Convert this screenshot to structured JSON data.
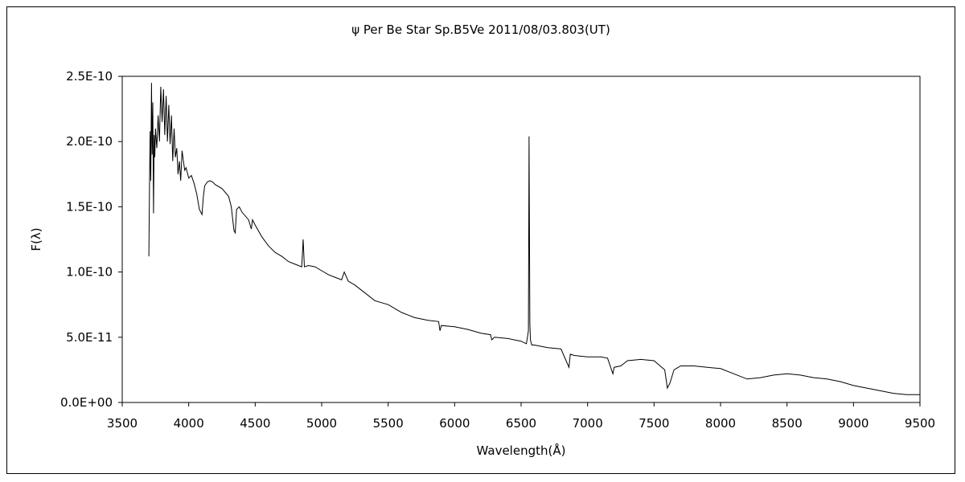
{
  "chart_data": {
    "type": "line",
    "title": "ψ Per   Be Star   Sp.B5Ve    2011/08/03.803(UT)",
    "xlabel": "Wavelength(Å)",
    "ylabel": "F(λ)",
    "xlim": [
      3500,
      9500
    ],
    "ylim": [
      0,
      2.5e-10
    ],
    "x_ticks": [
      3500,
      4000,
      4500,
      5000,
      5500,
      6000,
      6500,
      7000,
      7500,
      8000,
      8500,
      9000,
      9500
    ],
    "x_tick_labels": [
      "3500",
      "4000",
      "4500",
      "5000",
      "5500",
      "6000",
      "6500",
      "7000",
      "7500",
      "8000",
      "8500",
      "9000",
      "9500"
    ],
    "y_ticks": [
      0,
      5e-11,
      1e-10,
      1.5e-10,
      2e-10,
      2.5e-10
    ],
    "y_tick_labels": [
      "0.0E+00",
      "5.0E-11",
      "1.0E-10",
      "1.5E-10",
      "2.0E-10",
      "2.5E-10"
    ],
    "grid": false,
    "legend": "none",
    "line_color": "#000000",
    "series": [
      {
        "x": [
          3700,
          3705,
          3710,
          3715,
          3720,
          3725,
          3730,
          3735,
          3740,
          3745,
          3750,
          3760,
          3770,
          3780,
          3790,
          3800,
          3810,
          3820,
          3830,
          3840,
          3850,
          3860,
          3870,
          3880,
          3890,
          3900,
          3910,
          3920,
          3930,
          3940,
          3950,
          3960,
          3970,
          3980,
          4000,
          4020,
          4040,
          4060,
          4080,
          4100,
          4110,
          4120,
          4140,
          4160,
          4180,
          4200,
          4250,
          4300,
          4320,
          4340,
          4350,
          4360,
          4380,
          4400,
          4450,
          4471,
          4480,
          4500,
          4550,
          4600,
          4650,
          4700,
          4750,
          4800,
          4850,
          4861,
          4870,
          4900,
          4950,
          5000,
          5050,
          5100,
          5150,
          5170,
          5200,
          5250,
          5300,
          5350,
          5400,
          5500,
          5600,
          5700,
          5800,
          5880,
          5890,
          5900,
          6000,
          6100,
          6200,
          6270,
          6280,
          6300,
          6400,
          6500,
          6540,
          6555,
          6560,
          6563,
          6566,
          6570,
          6580,
          6600,
          6700,
          6800,
          6860,
          6870,
          6900,
          7000,
          7100,
          7150,
          7190,
          7200,
          7250,
          7300,
          7400,
          7500,
          7580,
          7600,
          7620,
          7650,
          7700,
          7800,
          7900,
          8000,
          8100,
          8200,
          8300,
          8400,
          8500,
          8600,
          8700,
          8800,
          8900,
          9000,
          9100,
          9200,
          9300,
          9400,
          9500
        ],
        "y": [
          1.12e-10,
          1.65e-10,
          2.08e-10,
          1.7e-10,
          2.45e-10,
          1.9e-10,
          2.3e-10,
          1.45e-10,
          2.05e-10,
          1.88e-10,
          2.1e-10,
          1.95e-10,
          2.2e-10,
          2e-10,
          2.42e-10,
          2.15e-10,
          2.4e-10,
          2.05e-10,
          2.35e-10,
          2e-10,
          2.28e-10,
          1.98e-10,
          2.2e-10,
          1.85e-10,
          2.1e-10,
          1.88e-10,
          1.95e-10,
          1.75e-10,
          1.85e-10,
          1.7e-10,
          1.93e-10,
          1.85e-10,
          1.78e-10,
          1.8e-10,
          1.72e-10,
          1.74e-10,
          1.68e-10,
          1.6e-10,
          1.48e-10,
          1.44e-10,
          1.58e-10,
          1.66e-10,
          1.69e-10,
          1.7e-10,
          1.69e-10,
          1.67e-10,
          1.64e-10,
          1.58e-10,
          1.5e-10,
          1.32e-10,
          1.3e-10,
          1.48e-10,
          1.5e-10,
          1.46e-10,
          1.4e-10,
          1.33e-10,
          1.4e-10,
          1.36e-10,
          1.27e-10,
          1.2e-10,
          1.15e-10,
          1.12e-10,
          1.08e-10,
          1.06e-10,
          1.04e-10,
          1.25e-10,
          1.04e-10,
          1.05e-10,
          1.04e-10,
          1.01e-10,
          9.8e-11,
          9.6e-11,
          9.4e-11,
          1e-10,
          9.3e-11,
          9e-11,
          8.6e-11,
          8.2e-11,
          7.8e-11,
          7.5e-11,
          6.9e-11,
          6.5e-11,
          6.3e-11,
          6.2e-11,
          5.5e-11,
          5.9e-11,
          5.8e-11,
          5.6e-11,
          5.3e-11,
          5.2e-11,
          4.8e-11,
          5e-11,
          4.9e-11,
          4.7e-11,
          4.5e-11,
          5.5e-11,
          2.04e-10,
          1.28e-10,
          6e-11,
          4.8e-11,
          4.4e-11,
          4.4e-11,
          4.2e-11,
          4.1e-11,
          2.7e-11,
          3.7e-11,
          3.6e-11,
          3.5e-11,
          3.5e-11,
          3.4e-11,
          2.2e-11,
          2.7e-11,
          2.8e-11,
          3.2e-11,
          3.3e-11,
          3.2e-11,
          2.5e-11,
          1.1e-11,
          1.5e-11,
          2.5e-11,
          2.8e-11,
          2.8e-11,
          2.7e-11,
          2.6e-11,
          2.2e-11,
          1.8e-11,
          1.9e-11,
          2.1e-11,
          2.2e-11,
          2.1e-11,
          1.9e-11,
          1.8e-11,
          1.6e-11,
          1.3e-11,
          1.1e-11,
          9e-12,
          7e-12,
          6e-12,
          6e-12
        ]
      }
    ]
  }
}
